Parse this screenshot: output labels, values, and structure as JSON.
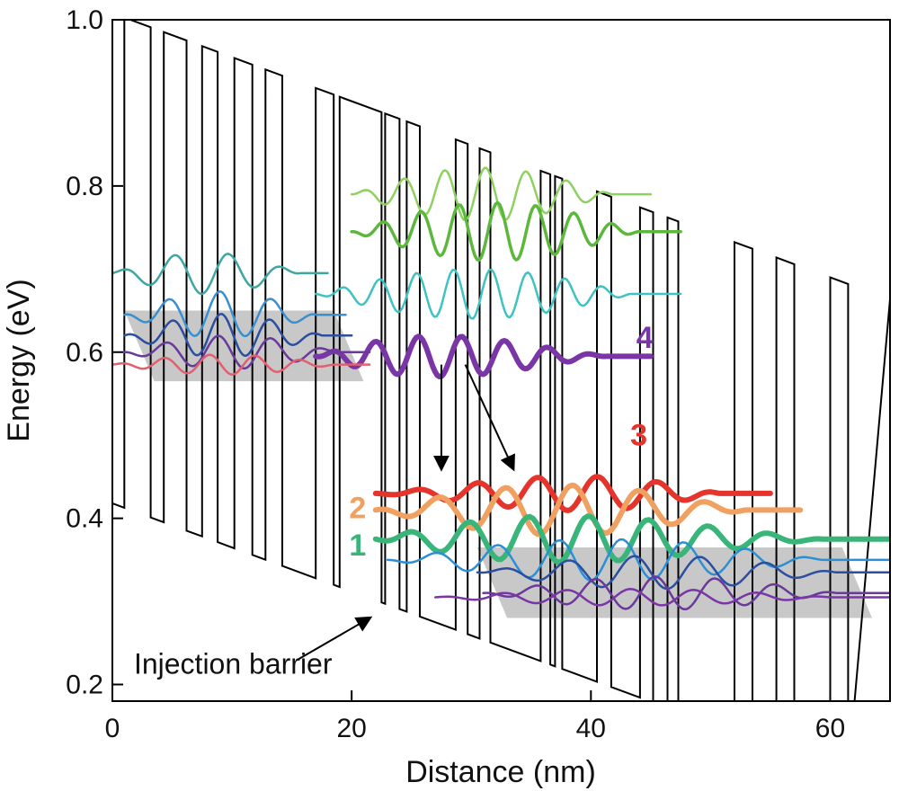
{
  "chart_data": {
    "type": "line",
    "title": "",
    "xlabel": "Distance (nm)",
    "ylabel": "Energy (eV)",
    "xlim": [
      0,
      65
    ],
    "ylim": [
      0.18,
      1.0
    ],
    "xticks": [
      0,
      20,
      40,
      60
    ],
    "xtick_labels": [
      "0",
      "20",
      "40",
      "60"
    ],
    "yticks": [
      0.2,
      0.4,
      0.6,
      0.8,
      1.0
    ],
    "ytick_labels": [
      "0.2",
      "0.4",
      "0.6",
      "0.8",
      "1.0"
    ],
    "grid": false,
    "legend": "none",
    "conduction_band": {
      "color": "#000000",
      "field_slope_ev_per_nm": -0.0053,
      "barrier_height_ev": 0.59,
      "barriers_nm": [
        [
          1.0,
          3.2
        ],
        [
          4.3,
          6.2
        ],
        [
          7.5,
          8.8
        ],
        [
          10.2,
          11.7
        ],
        [
          12.8,
          14.2
        ],
        [
          17.0,
          18.5
        ],
        [
          19.0,
          22.5
        ],
        [
          22.8,
          24.0
        ],
        [
          24.6,
          25.7
        ],
        [
          28.7,
          29.7
        ],
        [
          30.7,
          31.6
        ],
        [
          35.8,
          36.6
        ],
        [
          37.0,
          37.6
        ],
        [
          40.5,
          41.7
        ],
        [
          44.1,
          45.2
        ],
        [
          46.4,
          47.3
        ],
        [
          52.0,
          53.5
        ],
        [
          55.5,
          57.0
        ],
        [
          60.0,
          61.5
        ]
      ],
      "end_nm": 65
    },
    "shaded_regions": [
      {
        "name": "injector-left",
        "color": "#c8c8c8",
        "x0": 1.0,
        "x1": 18.5,
        "y_top": 0.65,
        "y_bottom": 0.565,
        "skew_nm": 2.5
      },
      {
        "name": "injector-right",
        "color": "#c8c8c8",
        "x0": 30.5,
        "x1": 61.0,
        "y_top": 0.365,
        "y_bottom": 0.28,
        "skew_nm": 2.5
      }
    ],
    "series": [
      {
        "color": "#8fd160",
        "width": 2.5,
        "x0": 20.0,
        "x1": 45.0,
        "base": 0.79,
        "amp": 0.032,
        "period": 3.4,
        "phase": 0.5
      },
      {
        "color": "#5cb83c",
        "width": 3.5,
        "x0": 20.0,
        "x1": 47.5,
        "base": 0.745,
        "amp": 0.035,
        "period": 3.2,
        "phase": 1.2
      },
      {
        "color": "#3ec2c2",
        "width": 2.5,
        "x0": 17.0,
        "x1": 47.5,
        "base": 0.67,
        "amp": 0.03,
        "period": 3.1,
        "phase": 0.3
      },
      {
        "color": "#7a35a6",
        "width": 6.0,
        "x0": 17.0,
        "x1": 45.0,
        "base": 0.595,
        "amp": 0.028,
        "period": 3.6,
        "phase": 0.9,
        "decay": true
      },
      {
        "color": "#3ca6a0",
        "width": 2.5,
        "x0": 0.0,
        "x1": 18.0,
        "base": 0.695,
        "amp": 0.025,
        "period": 4.5,
        "phase": 0.6
      },
      {
        "color": "#3a8fd0",
        "width": 2.5,
        "x0": 1.0,
        "x1": 19.5,
        "base": 0.645,
        "amp": 0.028,
        "period": 4.3,
        "phase": 1.0
      },
      {
        "color": "#2b4f9e",
        "width": 2.5,
        "x0": 1.0,
        "x1": 20.0,
        "base": 0.62,
        "amp": 0.026,
        "period": 4.1,
        "phase": 0.2
      },
      {
        "color": "#6a3a9a",
        "width": 2.5,
        "x0": 1.0,
        "x1": 21.5,
        "base": 0.6,
        "amp": 0.02,
        "period": 4.4,
        "phase": 1.5
      },
      {
        "color": "#e06070",
        "width": 2.5,
        "x0": 0.0,
        "x1": 21.5,
        "base": 0.585,
        "amp": 0.012,
        "period": 3.8,
        "phase": 0.7
      },
      {
        "color": "#e4342b",
        "width": 6.0,
        "x0": 22.0,
        "x1": 55.0,
        "base": 0.43,
        "amp": 0.025,
        "period": 5.0,
        "phase": 0.9,
        "grow": true
      },
      {
        "color": "#f0a060",
        "width": 6.0,
        "x0": 22.0,
        "x1": 57.5,
        "base": 0.41,
        "amp": 0.03,
        "period": 5.6,
        "phase": 2.4
      },
      {
        "color": "#3ab57a",
        "width": 6.0,
        "x0": 22.0,
        "x1": 65.0,
        "base": 0.375,
        "amp": 0.032,
        "period": 5.0,
        "phase": 1.8,
        "decay": true
      },
      {
        "color": "#2b8fd6",
        "width": 2.5,
        "x0": 23.0,
        "x1": 65.0,
        "base": 0.35,
        "amp": 0.025,
        "period": 5.2,
        "phase": 0.4
      },
      {
        "color": "#2b4f9e",
        "width": 2.5,
        "x0": 30.5,
        "x1": 65.0,
        "base": 0.335,
        "amp": 0.02,
        "period": 5.5,
        "phase": 2.0
      },
      {
        "color": "#6a3a9a",
        "width": 2.5,
        "x0": 31.0,
        "x1": 65.0,
        "base": 0.31,
        "amp": 0.02,
        "period": 5.0,
        "phase": 1.1
      },
      {
        "color": "#7a35a6",
        "width": 2.5,
        "x0": 27.0,
        "x1": 65.0,
        "base": 0.305,
        "amp": 0.01,
        "period": 5.3,
        "phase": 0.5
      }
    ],
    "state_labels": [
      {
        "text": "4",
        "color": "#7a35a6",
        "x": 44.5,
        "y": 0.605
      },
      {
        "text": "3",
        "color": "#e4342b",
        "x": 44.0,
        "y": 0.488
      },
      {
        "text": "2",
        "color": "#f0a060",
        "x": 20.5,
        "y": 0.4
      },
      {
        "text": "1",
        "color": "#3ab57a",
        "x": 20.5,
        "y": 0.355
      }
    ],
    "arrows": [
      {
        "from": [
          27.5,
          0.585
        ],
        "to": [
          27.5,
          0.46
        ]
      },
      {
        "from": [
          29.5,
          0.585
        ],
        "to": [
          33.5,
          0.46
        ]
      },
      {
        "from": [
          15.5,
          0.23
        ],
        "to": [
          21.5,
          0.28
        ]
      }
    ],
    "annotations": [
      {
        "text": "Injection barrier",
        "x": 1.8,
        "y": 0.213
      }
    ]
  }
}
